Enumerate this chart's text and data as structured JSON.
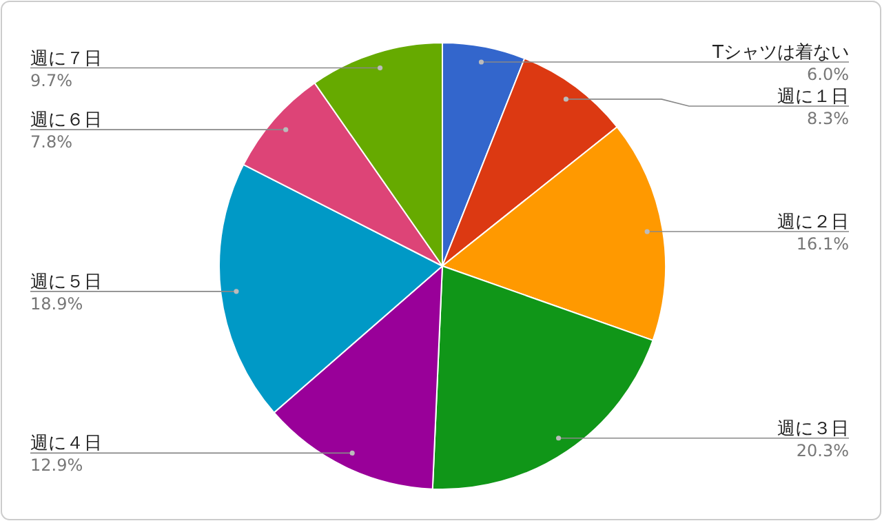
{
  "chart_data": {
    "type": "pie",
    "categories": [
      "Tシャツは着ない",
      "週に１日",
      "週に２日",
      "週に３日",
      "週に４日",
      "週に５日",
      "週に６日",
      "週に７日"
    ],
    "values": [
      6.0,
      8.3,
      16.1,
      20.3,
      12.9,
      18.9,
      7.8,
      9.7
    ],
    "colors": [
      "#3366cc",
      "#dc3912",
      "#ff9900",
      "#109618",
      "#990099",
      "#0099c6",
      "#dd4477",
      "#66aa00"
    ],
    "value_labels": [
      "6.0%",
      "8.3%",
      "16.1%",
      "20.3%",
      "12.9%",
      "18.9%",
      "7.8%",
      "9.7%"
    ]
  }
}
